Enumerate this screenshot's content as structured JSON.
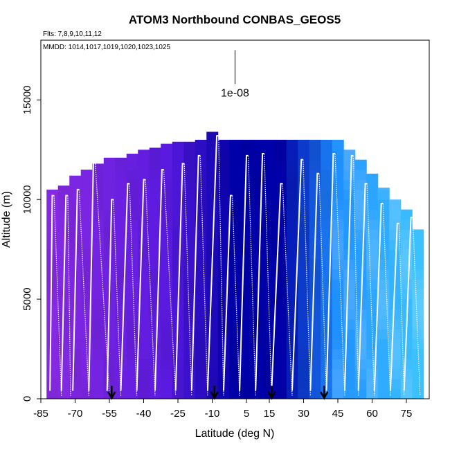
{
  "chart_data": {
    "type": "heatmap",
    "title": "ATOM3 Northbound CONBAS_GEOS5",
    "flights_label": "Flts: 7,8,9,10,11,12",
    "dates_label": "MMDD: 1014,1017,1019,1020,1023,1025",
    "xlabel": "Latitude (deg N)",
    "ylabel": "Altitude (m)",
    "xlim": [
      -85,
      85
    ],
    "ylim": [
      0,
      18000
    ],
    "x_ticks": [
      -85,
      -70,
      -55,
      -40,
      -25,
      -10,
      5,
      15,
      30,
      45,
      60,
      75
    ],
    "x_tick_labels": [
      "-85",
      "-70",
      "-55",
      "-40",
      "-25",
      "-10",
      "5",
      "15",
      "30",
      "45",
      "60",
      "75"
    ],
    "y_ticks": [
      0,
      5000,
      10000,
      15000
    ],
    "y_tick_labels": [
      "0",
      "5000",
      "10000",
      "15000"
    ],
    "scale_label": "1e-08",
    "scale_bar_altitude": [
      15800,
      17500
    ],
    "arrow_latitudes": [
      -54,
      -9,
      16,
      39
    ],
    "grid": false,
    "legend": "none",
    "colors": {
      "southern": "#8a2be2",
      "mid": "#5a1ae0",
      "core": "#0000a8",
      "north": "#1e90ff",
      "arctic": "#40c8ff",
      "profile": "#ffffff",
      "axis": "#000000"
    },
    "columns": [
      {
        "lat": -80,
        "top": 10500
      },
      {
        "lat": -75,
        "top": 10700
      },
      {
        "lat": -70,
        "top": 11200
      },
      {
        "lat": -65,
        "top": 11500
      },
      {
        "lat": -60,
        "top": 11800
      },
      {
        "lat": -55,
        "top": 12100
      },
      {
        "lat": -50,
        "top": 12100
      },
      {
        "lat": -45,
        "top": 12300
      },
      {
        "lat": -40,
        "top": 12500
      },
      {
        "lat": -35,
        "top": 12600
      },
      {
        "lat": -30,
        "top": 12800
      },
      {
        "lat": -25,
        "top": 12900
      },
      {
        "lat": -20,
        "top": 12900
      },
      {
        "lat": -15,
        "top": 13000
      },
      {
        "lat": -10,
        "top": 13400
      },
      {
        "lat": -5,
        "top": 13000
      },
      {
        "lat": 0,
        "top": 13000
      },
      {
        "lat": 5,
        "top": 13000
      },
      {
        "lat": 10,
        "top": 13000
      },
      {
        "lat": 15,
        "top": 13000
      },
      {
        "lat": 20,
        "top": 13000
      },
      {
        "lat": 25,
        "top": 13000
      },
      {
        "lat": 30,
        "top": 13000
      },
      {
        "lat": 35,
        "top": 13000
      },
      {
        "lat": 40,
        "top": 13000
      },
      {
        "lat": 45,
        "top": 13000
      },
      {
        "lat": 50,
        "top": 12500
      },
      {
        "lat": 55,
        "top": 12000
      },
      {
        "lat": 60,
        "top": 11300
      },
      {
        "lat": 65,
        "top": 10600
      },
      {
        "lat": 70,
        "top": 10000
      },
      {
        "lat": 75,
        "top": 9500
      },
      {
        "lat": 80,
        "top": 8500
      }
    ],
    "profiles": [
      {
        "start": -81,
        "peak": -80,
        "end": -76,
        "top": 10200
      },
      {
        "start": -76,
        "peak": -74,
        "end": -72,
        "top": 10200
      },
      {
        "start": -71,
        "peak": -69,
        "end": -64,
        "top": 10500
      },
      {
        "start": -64,
        "peak": -62,
        "end": -55,
        "top": 11900
      },
      {
        "start": -56,
        "peak": -54,
        "end": -50,
        "top": 10000
      },
      {
        "start": -50,
        "peak": -47,
        "end": -43,
        "top": 10800
      },
      {
        "start": -43,
        "peak": -40,
        "end": -35,
        "top": 11000
      },
      {
        "start": -35,
        "peak": -32,
        "end": -26,
        "top": 11500
      },
      {
        "start": -26,
        "peak": -23,
        "end": -19,
        "top": 11800
      },
      {
        "start": -19,
        "peak": -16,
        "end": -12,
        "top": 12200
      },
      {
        "start": -12,
        "peak": -8,
        "end": -5,
        "top": 13200
      },
      {
        "start": -5,
        "peak": -2,
        "end": 2,
        "top": 10200
      },
      {
        "start": 2,
        "peak": 5,
        "end": 9,
        "top": 12200
      },
      {
        "start": 9,
        "peak": 12,
        "end": 16,
        "top": 12300
      },
      {
        "start": 16,
        "peak": 20,
        "end": 25,
        "top": 10800
      },
      {
        "start": 25,
        "peak": 29,
        "end": 33,
        "top": 12000
      },
      {
        "start": 33,
        "peak": 36,
        "end": 40,
        "top": 11300
      },
      {
        "start": 40,
        "peak": 43,
        "end": 48,
        "top": 12300
      },
      {
        "start": 48,
        "peak": 51,
        "end": 54,
        "top": 12200
      },
      {
        "start": 54,
        "peak": 57,
        "end": 61,
        "top": 10800
      },
      {
        "start": 61,
        "peak": 64,
        "end": 68,
        "top": 9800
      },
      {
        "start": 68,
        "peak": 71,
        "end": 74,
        "top": 8800
      },
      {
        "start": 74,
        "peak": 77,
        "end": 81,
        "top": 9100
      }
    ]
  }
}
